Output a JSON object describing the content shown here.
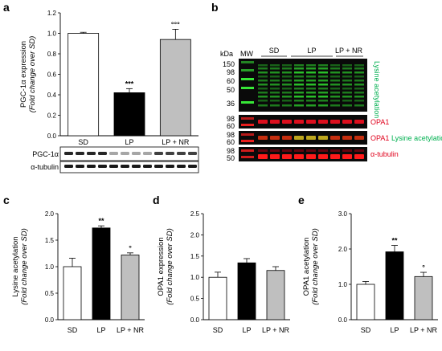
{
  "panels": {
    "a": "a",
    "b": "b",
    "c": "c",
    "d": "d",
    "e": "e"
  },
  "blot_a": {
    "rows": [
      "PGC-1α",
      "α-tubulin"
    ]
  },
  "blot_b": {
    "mw_title": "kDa",
    "mw_col": "MW",
    "group_labels": [
      "SD",
      "LP",
      "LP + NR"
    ],
    "kda_top": [
      "150",
      "98",
      "60",
      "50",
      "36"
    ],
    "kda_opa1": [
      "98",
      "60"
    ],
    "kda_merge": [
      "98",
      "60"
    ],
    "kda_tub": [
      "98",
      "50"
    ],
    "side_top": "Lysine acetylation",
    "side_opa1": "OPA1",
    "side_merge_red": "OPA1",
    "side_merge_green": "Lysine acetylation",
    "side_tub": "α-tubulin",
    "colors": {
      "green": "#00b050",
      "red": "#e0001b"
    }
  },
  "chart_data": [
    {
      "panel": "a",
      "type": "bar",
      "categories": [
        "SD",
        "LP",
        "LP + NR"
      ],
      "values": [
        1.0,
        0.42,
        0.94
      ],
      "errors": [
        0.01,
        0.04,
        0.1
      ],
      "colors": [
        "#ffffff",
        "#000000",
        "#bfbfbf"
      ],
      "significance": [
        "",
        "***",
        "°°°"
      ],
      "ylabel": "PGC-1α expression",
      "ylabel2": "(Fold change over SD)",
      "ylim": [
        0,
        1.2
      ],
      "yticks": [
        "0.0",
        "0.2",
        "0.4",
        "0.6",
        "0.8",
        "1.0",
        "1.2"
      ],
      "ytick_values": [
        0,
        0.2,
        0.4,
        0.6,
        0.8,
        1.0,
        1.2
      ]
    },
    {
      "panel": "c",
      "type": "bar",
      "categories": [
        "SD",
        "LP",
        "LP + NR"
      ],
      "values": [
        1.0,
        1.73,
        1.22
      ],
      "errors": [
        0.16,
        0.04,
        0.04
      ],
      "colors": [
        "#ffffff",
        "#000000",
        "#bfbfbf"
      ],
      "significance": [
        "",
        "**",
        "°"
      ],
      "ylabel": "Lysine acetylation",
      "ylabel2": "(Fold change over SD)",
      "ylim": [
        0,
        2.0
      ],
      "yticks": [
        "0.0",
        "0.5",
        "1.0",
        "1.5",
        "2.0"
      ],
      "ytick_values": [
        0,
        0.5,
        1.0,
        1.5,
        2.0
      ]
    },
    {
      "panel": "d",
      "type": "bar",
      "categories": [
        "SD",
        "LP",
        "LP + NR"
      ],
      "values": [
        1.0,
        1.34,
        1.16
      ],
      "errors": [
        0.12,
        0.1,
        0.09
      ],
      "colors": [
        "#ffffff",
        "#000000",
        "#bfbfbf"
      ],
      "significance": [
        "",
        "",
        ""
      ],
      "ylabel": "OPA1 expression",
      "ylabel2": "(Fold change over SD)",
      "ylim": [
        0,
        2.5
      ],
      "yticks": [
        "0.0",
        "0.5",
        "1.0",
        "1.5",
        "2.0",
        "2.5"
      ],
      "ytick_values": [
        0,
        0.5,
        1.0,
        1.5,
        2.0,
        2.5
      ]
    },
    {
      "panel": "e",
      "type": "bar",
      "categories": [
        "SD",
        "LP",
        "LP + NR"
      ],
      "values": [
        1.0,
        1.92,
        1.22
      ],
      "errors": [
        0.08,
        0.18,
        0.12
      ],
      "colors": [
        "#ffffff",
        "#000000",
        "#bfbfbf"
      ],
      "significance": [
        "",
        "**",
        "°"
      ],
      "ylabel": "OPA1 acetylation",
      "ylabel2": "(Fold change over SD)",
      "ylim": [
        0,
        3.0
      ],
      "yticks": [
        "0.0",
        "1.0",
        "2.0",
        "3.0"
      ],
      "ytick_values": [
        0,
        1.0,
        2.0,
        3.0
      ]
    }
  ]
}
